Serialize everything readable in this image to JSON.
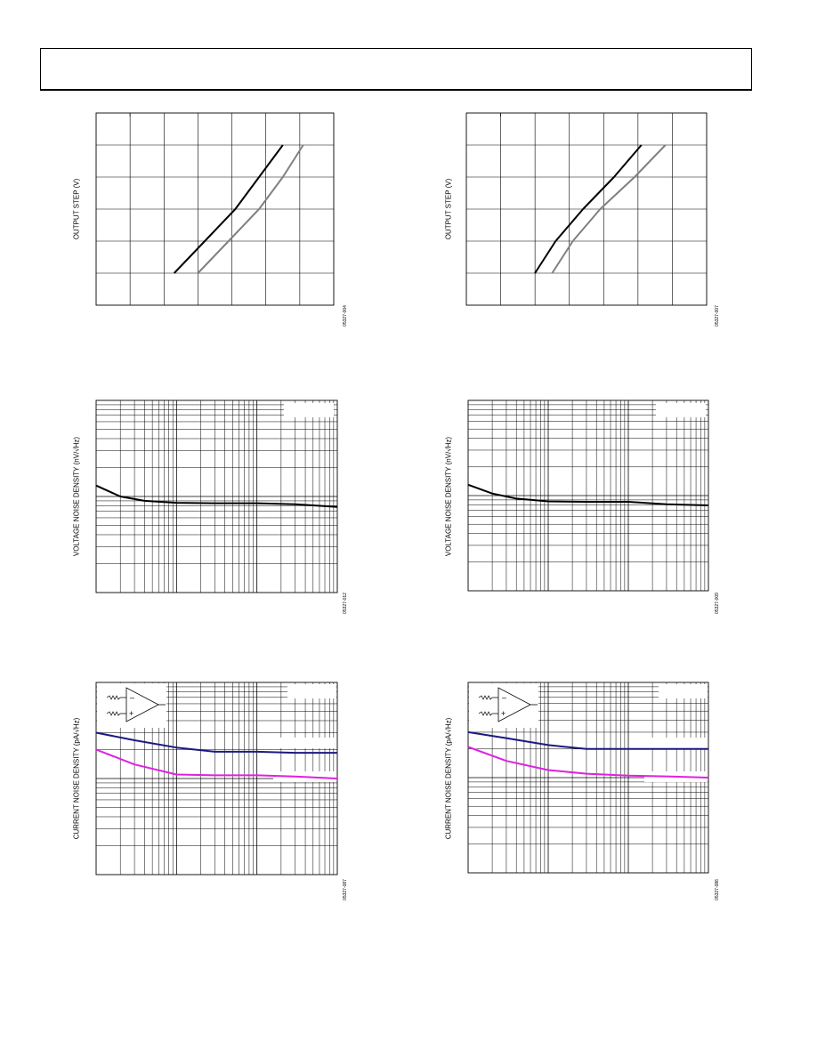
{
  "header": {
    "title": ""
  },
  "figures": [
    {
      "id": "step-left",
      "ylabel": "OUTPUT STEP (V)",
      "figure_id": "05327-004",
      "grid": "linear",
      "chart_data": {
        "type": "line",
        "title": "",
        "xlabel": "",
        "ylabel": "OUTPUT STEP (V)",
        "xlim": [
          0,
          7
        ],
        "ylim": [
          0,
          6
        ],
        "grid": true,
        "series": [
          {
            "color": "#000000",
            "x": [
              2.3,
              3.2,
              4.1,
              4.8,
              5.5
            ],
            "y": [
              1.0,
              2.0,
              3.0,
              4.0,
              5.0
            ]
          },
          {
            "color": "#808080",
            "x": [
              3.0,
              3.9,
              4.8,
              5.5,
              6.1
            ],
            "y": [
              1.0,
              2.0,
              3.0,
              4.0,
              5.0
            ]
          }
        ]
      }
    },
    {
      "id": "step-right",
      "ylabel": "OUTPUT STEP (V)",
      "figure_id": "05327-007",
      "grid": "linear",
      "chart_data": {
        "type": "line",
        "title": "",
        "xlabel": "",
        "ylabel": "OUTPUT STEP (V)",
        "xlim": [
          0,
          7
        ],
        "ylim": [
          0,
          6
        ],
        "grid": true,
        "series": [
          {
            "color": "#000000",
            "x": [
              2.0,
              2.6,
              3.4,
              4.3,
              5.1
            ],
            "y": [
              1.0,
              2.0,
              3.0,
              4.0,
              5.0
            ]
          },
          {
            "color": "#808080",
            "x": [
              2.5,
              3.1,
              3.9,
              4.9,
              5.8
            ],
            "y": [
              1.0,
              2.0,
              3.0,
              4.0,
              5.0
            ]
          }
        ]
      }
    },
    {
      "id": "vnoise-left",
      "ylabel": "VOLTAGE NOISE DENSITY (nV/√Hz)",
      "figure_id": "05327-012",
      "grid": "loglog",
      "chart_data": {
        "type": "line",
        "title": "",
        "xlabel": "",
        "ylabel": "VOLTAGE NOISE DENSITY (nV/√Hz)",
        "x_scale": "log",
        "y_scale": "log",
        "xlim": [
          1,
          1000
        ],
        "ylim": [
          1,
          100
        ],
        "grid": true,
        "series": [
          {
            "color": "#000000",
            "x": [
              1,
              2,
              4,
              10,
              30,
              100,
              300,
              1000
            ],
            "y": [
              13,
              10,
              9,
              8.6,
              8.5,
              8.5,
              8.3,
              7.8
            ]
          }
        ]
      }
    },
    {
      "id": "vnoise-right",
      "ylabel": "VOLTAGE NOISE DENSITY (nV/√Hz)",
      "figure_id": "05327-009",
      "grid": "loglog",
      "chart_data": {
        "type": "line",
        "title": "",
        "xlabel": "",
        "ylabel": "VOLTAGE NOISE DENSITY (nV/√Hz)",
        "x_scale": "log",
        "y_scale": "log",
        "xlim": [
          1,
          1000
        ],
        "ylim": [
          1,
          100
        ],
        "grid": true,
        "series": [
          {
            "color": "#000000",
            "x": [
              1,
              2,
              4,
              10,
              30,
              100,
              300,
              1000
            ],
            "y": [
              13,
              10.5,
              9.3,
              8.7,
              8.6,
              8.6,
              8.1,
              7.9
            ]
          }
        ]
      }
    },
    {
      "id": "inoise-left",
      "ylabel": "CURRENT NOISE DENSITY (pA/√Hz)",
      "figure_id": "05327-087",
      "grid": "loglog",
      "opamp": {
        "minus": "–",
        "plus": "+"
      },
      "chart_data": {
        "type": "line",
        "title": "",
        "xlabel": "",
        "ylabel": "CURRENT NOISE DENSITY (pA/√Hz)",
        "x_scale": "log",
        "y_scale": "log",
        "xlim": [
          1,
          1000
        ],
        "ylim": [
          0.01,
          1
        ],
        "grid": true,
        "series": [
          {
            "color": "#1a1a80",
            "x": [
              1,
              3,
              10,
              30,
              100,
              300,
              1000
            ],
            "y": [
              0.3,
              0.25,
              0.21,
              0.19,
              0.19,
              0.185,
              0.185
            ]
          },
          {
            "color": "#e020e0",
            "x": [
              1,
              3,
              10,
              30,
              100,
              300,
              1000
            ],
            "y": [
              0.2,
              0.14,
              0.11,
              0.108,
              0.108,
              0.105,
              0.1
            ]
          }
        ]
      }
    },
    {
      "id": "inoise-right",
      "ylabel": "CURRENT NOISE DENSITY (pA/√Hz)",
      "figure_id": "05327-086",
      "grid": "loglog",
      "opamp": {
        "minus": "–",
        "plus": "+"
      },
      "chart_data": {
        "type": "line",
        "title": "",
        "xlabel": "",
        "ylabel": "CURRENT NOISE DENSITY (pA/√Hz)",
        "x_scale": "log",
        "y_scale": "log",
        "xlim": [
          1,
          1000
        ],
        "ylim": [
          0.01,
          1
        ],
        "grid": true,
        "series": [
          {
            "color": "#1a1a80",
            "x": [
              1,
              3,
              10,
              30,
              100,
              300,
              1000
            ],
            "y": [
              0.3,
              0.26,
              0.22,
              0.2,
              0.2,
              0.2,
              0.2
            ]
          },
          {
            "color": "#e020e0",
            "x": [
              1,
              3,
              10,
              30,
              100,
              300,
              1000
            ],
            "y": [
              0.21,
              0.15,
              0.12,
              0.11,
              0.105,
              0.103,
              0.1
            ]
          }
        ]
      }
    }
  ]
}
